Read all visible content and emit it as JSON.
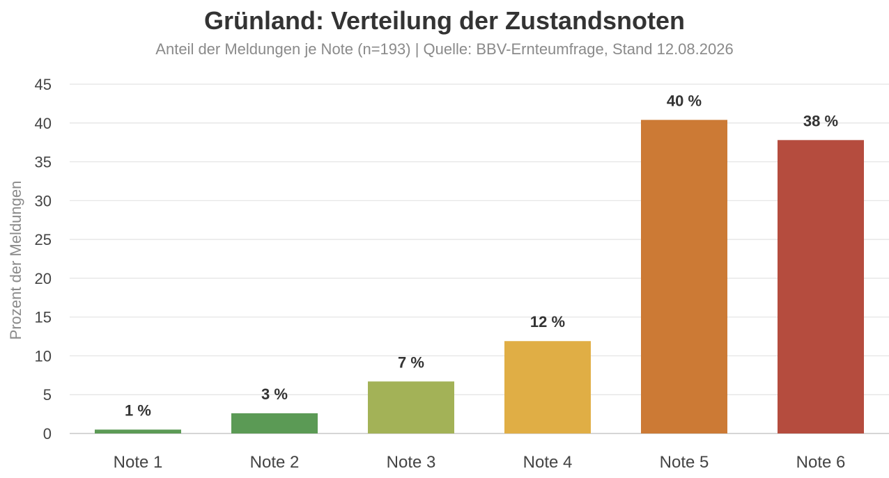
{
  "chart_data": {
    "type": "bar",
    "title": "Grünland: Verteilung der Zustandsnoten",
    "subtitle": "Anteil der Meldungen je Note (n=193)  |  Quelle: BBV-Ernteumfrage, Stand 12.08.2026",
    "xlabel": "",
    "ylabel": "Prozent der Meldungen",
    "categories": [
      "Note 1",
      "Note 2",
      "Note 3",
      "Note 4",
      "Note 5",
      "Note 6"
    ],
    "values": [
      0.5,
      2.6,
      6.7,
      11.9,
      40.4,
      37.8
    ],
    "data_labels": [
      "1 %",
      "3 %",
      "7 %",
      "12 %",
      "40 %",
      "38 %"
    ],
    "colors": [
      "#5b9a55",
      "#5b9a55",
      "#a3b257",
      "#e0ae45",
      "#cc7a35",
      "#b54c3e"
    ],
    "ylim": [
      0,
      45
    ],
    "yticks": [
      0,
      5,
      10,
      15,
      20,
      25,
      30,
      35,
      40,
      45
    ],
    "grid": true,
    "legend": "none"
  }
}
